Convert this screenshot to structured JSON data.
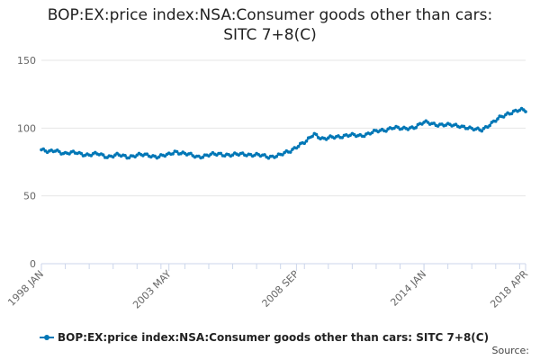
{
  "colors": {
    "series": "#0077b6",
    "grid": "#e6e6e6",
    "axis": "#ccd6eb",
    "tick_text": "#666666"
  },
  "header": {
    "title_line1": "BOP:EX:price index:NSA:Consumer goods other than cars:",
    "title_line2": "SITC 7+8(C)"
  },
  "footer": {
    "source_label": "Source:"
  },
  "chart_data": {
    "type": "line",
    "title": "BOP:EX:price index:NSA:Consumer goods other than cars: SITC 7+8(C)",
    "xlabel": "",
    "ylabel": "",
    "ylim": [
      0,
      150
    ],
    "yticks": [
      0,
      50,
      100,
      150
    ],
    "x_range": [
      1998.0,
      2018.25
    ],
    "xticks": [
      {
        "label": "1998 JAN",
        "t": 1998.0
      },
      {
        "label": "2003 MAY",
        "t": 2003.333
      },
      {
        "label": "2008 SEP",
        "t": 2008.667
      },
      {
        "label": "2014 JAN",
        "t": 2014.0
      },
      {
        "label": "2018 APR",
        "t": 2018.25
      }
    ],
    "grid": true,
    "legend_position": "bottom-left",
    "series": [
      {
        "name": "BOP:EX:price index:NSA:Consumer goods other than cars: SITC 7+8(C)",
        "anchors": [
          [
            1998.0,
            84
          ],
          [
            1998.3,
            82
          ],
          [
            1998.6,
            84
          ],
          [
            1999.0,
            81
          ],
          [
            1999.5,
            82
          ],
          [
            2000.0,
            80
          ],
          [
            2000.4,
            81
          ],
          [
            2000.8,
            79
          ],
          [
            2001.2,
            80
          ],
          [
            2001.6,
            79
          ],
          [
            2002.0,
            80
          ],
          [
            2002.5,
            80
          ],
          [
            2002.9,
            79
          ],
          [
            2003.3,
            80
          ],
          [
            2003.6,
            83
          ],
          [
            2004.0,
            81
          ],
          [
            2004.5,
            79
          ],
          [
            2005.0,
            80
          ],
          [
            2005.5,
            81
          ],
          [
            2006.0,
            80
          ],
          [
            2006.5,
            81
          ],
          [
            2007.0,
            80
          ],
          [
            2007.5,
            79
          ],
          [
            2008.0,
            80
          ],
          [
            2008.4,
            83
          ],
          [
            2008.7,
            87
          ],
          [
            2009.1,
            90
          ],
          [
            2009.4,
            96
          ],
          [
            2009.8,
            92
          ],
          [
            2010.2,
            93
          ],
          [
            2010.8,
            95
          ],
          [
            2011.3,
            94
          ],
          [
            2011.8,
            97
          ],
          [
            2012.3,
            98
          ],
          [
            2012.7,
            101
          ],
          [
            2013.1,
            99
          ],
          [
            2013.6,
            101
          ],
          [
            2014.0,
            104
          ],
          [
            2014.5,
            103
          ],
          [
            2015.0,
            102
          ],
          [
            2015.5,
            102
          ],
          [
            2016.0,
            99
          ],
          [
            2016.4,
            99
          ],
          [
            2016.9,
            104
          ],
          [
            2017.2,
            108
          ],
          [
            2017.5,
            111
          ],
          [
            2018.0,
            113
          ],
          [
            2018.25,
            113
          ]
        ]
      }
    ]
  }
}
